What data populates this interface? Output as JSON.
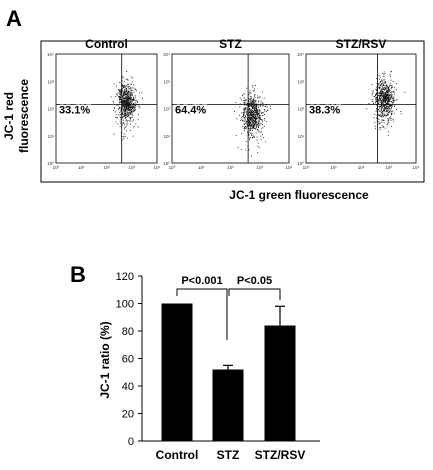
{
  "figure": {
    "panel_a_letter": "A",
    "panel_b_letter": "B"
  },
  "chart_data": [
    {
      "type": "scatter",
      "panel": "A",
      "ylabel": "JC-1 red fluorescence",
      "ylabel_lines": [
        "JC-1 red",
        "fluorescence"
      ],
      "xlabel": "JC-1 green fluorescence",
      "scale": "log",
      "axis_range": [
        1,
        10000
      ],
      "tick_labels": [
        "10⁰",
        "10¹",
        "10²",
        "10³",
        "10⁴"
      ],
      "quadrant_gate": {
        "x": 400,
        "y": 140
      },
      "plots": [
        {
          "title": "Control",
          "quadrant_percent": "33.1%",
          "cluster_center": [
            600,
            200
          ]
        },
        {
          "title": "STZ",
          "quadrant_percent": "64.4%",
          "cluster_center": [
            560,
            70
          ]
        },
        {
          "title": "STZ/RSV",
          "quadrant_percent": "38.3%",
          "cluster_center": [
            700,
            260
          ]
        }
      ]
    },
    {
      "type": "bar",
      "panel": "B",
      "categories": [
        "Control",
        "STZ",
        "STZ/RSV"
      ],
      "values": [
        100,
        52,
        84
      ],
      "errors": [
        0,
        3,
        14
      ],
      "ylabel": "JC-1 ratio (%)",
      "xlabel": "",
      "ylim": [
        0,
        120
      ],
      "yticks": [
        0,
        20,
        40,
        60,
        80,
        100,
        120
      ],
      "bar_color": "#000000",
      "significance": [
        {
          "from": 0,
          "to": 1,
          "label": "P<0.001"
        },
        {
          "from": 1,
          "to": 2,
          "label": "P<0.05"
        }
      ]
    }
  ]
}
